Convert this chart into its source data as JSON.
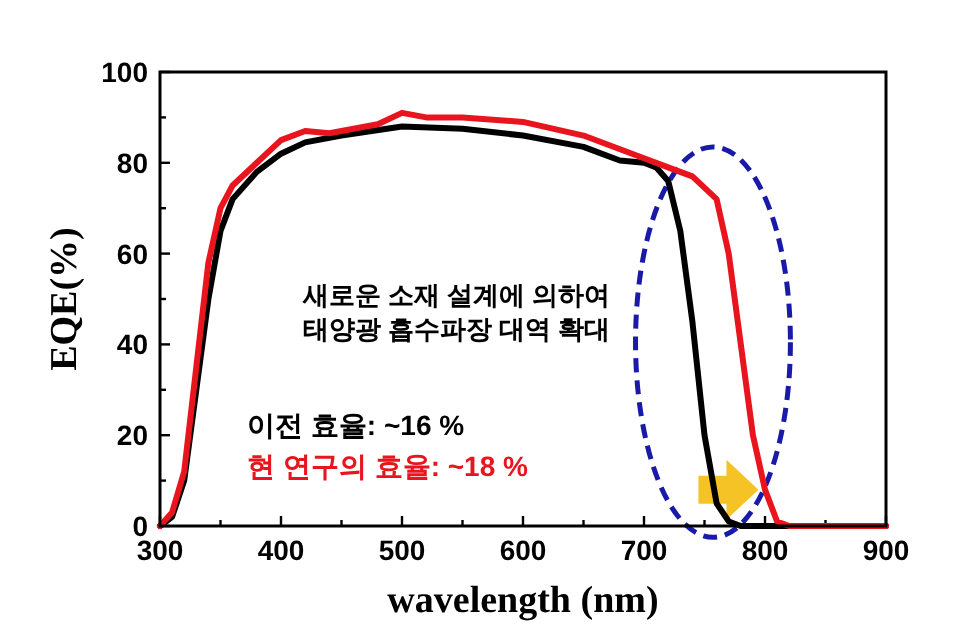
{
  "chart_data": {
    "type": "line",
    "xlabel": "wavelength (nm)",
    "ylabel": "EQE(%)",
    "xlim": [
      300,
      900
    ],
    "ylim": [
      0,
      100
    ],
    "xticks": [
      300,
      {
        "value": 350,
        "label": null
      },
      400,
      {
        "value": 450,
        "label": null
      },
      500,
      {
        "value": 550,
        "label": null
      },
      600,
      {
        "value": 650,
        "label": null
      },
      700,
      {
        "value": 750,
        "label": null
      },
      800,
      {
        "value": 850,
        "label": null
      },
      900
    ],
    "yticks": [
      0,
      {
        "value": 10,
        "label": null
      },
      20,
      {
        "value": 30,
        "label": null
      },
      40,
      {
        "value": 50,
        "label": null
      },
      60,
      {
        "value": 70,
        "label": null
      },
      80,
      {
        "value": 90,
        "label": null
      },
      100
    ],
    "annotations": [
      "새로운 소재 설계에 의하여\n태양광 흡수파장 대역 확대",
      "이전 효율: ~16 %",
      "현 연구의 효율: ~18 %"
    ],
    "series": [
      {
        "color": "#000000",
        "x": [
          300,
          310,
          320,
          330,
          340,
          350,
          360,
          380,
          400,
          420,
          450,
          500,
          550,
          600,
          650,
          680,
          700,
          710,
          720,
          730,
          740,
          750,
          760,
          770,
          780,
          900
        ],
        "values": [
          0,
          2,
          10,
          30,
          50,
          65,
          72,
          78,
          82,
          84.5,
          86,
          88,
          87.5,
          86,
          83.5,
          80.5,
          80,
          79,
          76,
          65,
          45,
          20,
          5,
          1,
          0,
          0
        ]
      },
      {
        "color": "#e8141e",
        "x": [
          300,
          310,
          320,
          330,
          340,
          350,
          360,
          380,
          400,
          420,
          440,
          480,
          500,
          520,
          550,
          600,
          650,
          700,
          720,
          740,
          760,
          770,
          780,
          790,
          800,
          810,
          820,
          900
        ],
        "values": [
          0,
          3,
          12,
          35,
          58,
          70,
          75,
          80,
          85,
          87,
          86.5,
          88.5,
          91,
          90,
          90,
          89,
          86,
          81,
          79,
          77,
          72,
          60,
          40,
          20,
          8,
          1,
          0,
          0
        ]
      }
    ]
  }
}
